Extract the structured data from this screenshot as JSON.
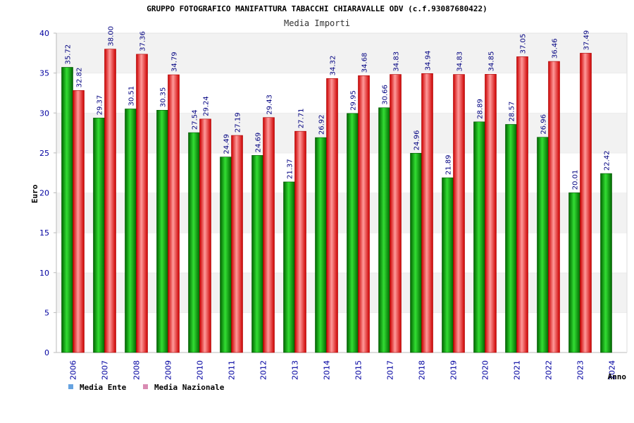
{
  "title": "GRUPPO FOTOGRAFICO MANIFATTURA TABACCHI CHIARAVALLE ODV (c.f.93087680422)",
  "subtitle": "Media Importi",
  "colors": {
    "ente": "#00a000",
    "nazionale": "#e00000",
    "legend_ente": "#66a3e0",
    "legend_nazionale": "#d98cb3",
    "band": "#f2f2f2",
    "tick": "#0000a0"
  },
  "chart_data": {
    "type": "bar",
    "title": "GRUPPO FOTOGRAFICO MANIFATTURA TABACCHI CHIARAVALLE ODV (c.f.93087680422)",
    "subtitle": "Media Importi",
    "xlabel": "Anno",
    "ylabel": "Euro",
    "ylim": [
      0,
      40
    ],
    "yticks": [
      "0",
      "5",
      "10",
      "15",
      "20",
      "25",
      "30",
      "35",
      "40"
    ],
    "grid": "alternating horizontal bands",
    "legend_position": "bottom-left",
    "categories": [
      "2006",
      "2007",
      "2008",
      "2009",
      "2010",
      "2011",
      "2012",
      "2013",
      "2014",
      "2015",
      "2017",
      "2018",
      "2019",
      "2020",
      "2021",
      "2022",
      "2023",
      "2024"
    ],
    "series": [
      {
        "name": "Media Ente",
        "values": [
          35.72,
          29.37,
          30.51,
          30.35,
          27.54,
          24.49,
          24.69,
          21.37,
          26.92,
          29.95,
          30.66,
          24.96,
          21.89,
          28.89,
          28.57,
          26.96,
          20.01,
          22.42
        ],
        "labels": [
          "35.72",
          "29.37",
          "30.51",
          "30.35",
          "27.54",
          "24.49",
          "24.69",
          "21.37",
          "26.92",
          "29.95",
          "30.66",
          "24.96",
          "21.89",
          "28.89",
          "28.57",
          "26.96",
          "20.01",
          "22.42"
        ]
      },
      {
        "name": "Media Nazionale",
        "values": [
          32.82,
          38.0,
          37.36,
          34.79,
          29.24,
          27.19,
          29.43,
          27.71,
          34.32,
          34.68,
          34.83,
          34.94,
          34.83,
          34.85,
          37.05,
          36.46,
          37.49,
          null
        ],
        "labels": [
          "32.82",
          "38.00",
          "37.36",
          "34.79",
          "29.24",
          "27.19",
          "29.43",
          "27.71",
          "34.32",
          "34.68",
          "34.83",
          "34.94",
          "34.83",
          "34.85",
          "37.05",
          "36.46",
          "37.49",
          null
        ]
      }
    ]
  }
}
